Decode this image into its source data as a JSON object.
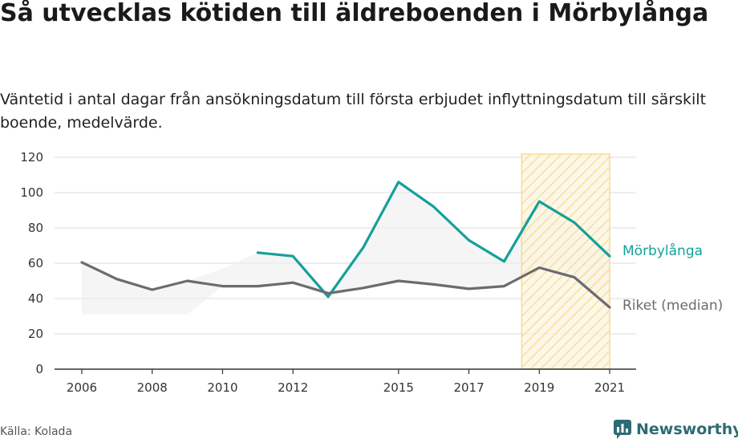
{
  "header": {
    "title": "Så utvecklas kötiden till äldreboenden i Mörbylånga",
    "subtitle": "Väntetid i antal dagar från ansökningsdatum till första erbjudet inflyttningsdatum till särskilt boende, medelvärde."
  },
  "footer": {
    "source": "Källa: Kolada",
    "brand": "Newsworthy"
  },
  "colors": {
    "accent": "#14a09a",
    "national": "#6b6b70",
    "highlight": "#f7d27a",
    "grid": "#dddddd"
  },
  "chart_data": {
    "type": "line",
    "title": "Så utvecklas kötiden till äldreboenden i Mörbylånga",
    "xlabel": "",
    "ylabel": "",
    "ylim": [
      0,
      120
    ],
    "yticks": [
      0,
      20,
      40,
      60,
      80,
      100,
      120
    ],
    "xticks": [
      2006,
      2008,
      2010,
      2012,
      2015,
      2017,
      2019,
      2021
    ],
    "xlim": [
      2006,
      2021
    ],
    "grid": true,
    "highlight_range": [
      2018.5,
      2021
    ],
    "series": [
      {
        "name": "Mörbylånga",
        "color": "#14a09a",
        "label_text": "Mörbylånga",
        "points": [
          [
            2011,
            66
          ],
          [
            2012,
            64
          ],
          [
            2013,
            41
          ],
          [
            2014,
            69
          ],
          [
            2015,
            106
          ],
          [
            2016,
            92
          ],
          [
            2017,
            73
          ],
          [
            2018,
            61
          ],
          [
            2019,
            95
          ],
          [
            2020,
            83
          ],
          [
            2021,
            64
          ]
        ]
      },
      {
        "name": "Riket (median)",
        "color": "#6b6b70",
        "label_text": "Riket (median)",
        "points": [
          [
            2006,
            60.5
          ],
          [
            2007,
            51
          ],
          [
            2008,
            45
          ],
          [
            2009,
            50
          ],
          [
            2010,
            47
          ],
          [
            2011,
            47
          ],
          [
            2012,
            49
          ],
          [
            2013,
            43
          ],
          [
            2014,
            46
          ],
          [
            2015,
            50
          ],
          [
            2016,
            48
          ],
          [
            2017,
            45.5
          ],
          [
            2018,
            47
          ],
          [
            2019,
            57.5
          ],
          [
            2020,
            52
          ],
          [
            2021,
            35
          ]
        ]
      }
    ],
    "band": {
      "name": "range",
      "color": "#eeeeee",
      "lower": [
        [
          2006,
          31
        ],
        [
          2007,
          31
        ],
        [
          2008,
          31
        ],
        [
          2009,
          31
        ],
        [
          2010,
          47
        ],
        [
          2011,
          47
        ],
        [
          2012,
          49
        ],
        [
          2013,
          41
        ],
        [
          2014,
          46
        ],
        [
          2015,
          50
        ],
        [
          2016,
          48
        ],
        [
          2017,
          45.5
        ],
        [
          2018,
          47
        ],
        [
          2019,
          57.5
        ],
        [
          2020,
          52
        ],
        [
          2021,
          35
        ]
      ],
      "upper": [
        [
          2006,
          60.5
        ],
        [
          2007,
          51
        ],
        [
          2008,
          45
        ],
        [
          2009,
          50
        ],
        [
          2010,
          57
        ],
        [
          2011,
          66
        ],
        [
          2012,
          64
        ],
        [
          2013,
          43
        ],
        [
          2014,
          69
        ],
        [
          2015,
          106
        ],
        [
          2016,
          92
        ],
        [
          2017,
          73
        ],
        [
          2018,
          61
        ],
        [
          2019,
          95
        ],
        [
          2020,
          83
        ],
        [
          2021,
          64
        ]
      ]
    }
  }
}
